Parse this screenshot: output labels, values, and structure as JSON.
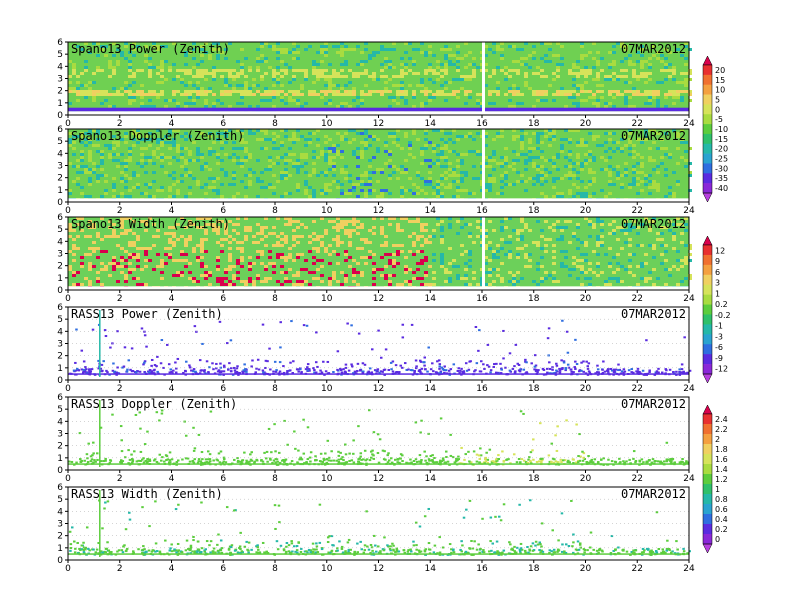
{
  "chart_data": [
    {
      "type": "heatmap",
      "title": "Spano13 Power (Zenith)",
      "date": "07MAR2012",
      "xlim": [
        0,
        24
      ],
      "ylim": [
        0,
        6
      ],
      "x_ticks": [
        "0",
        "2",
        "4",
        "6",
        "8",
        "10",
        "12",
        "14",
        "16",
        "18",
        "20",
        "22",
        "24"
      ],
      "y_ticks": [
        "0",
        "1",
        "2",
        "3",
        "4",
        "5",
        "6"
      ],
      "colorbar": {
        "ticks": [
          "20",
          "15",
          "10",
          "5",
          "0",
          "-5",
          "-10",
          "-15",
          "-20",
          "-25",
          "-30",
          "-35",
          "-40"
        ],
        "colors": [
          "#d9004c",
          "#e83030",
          "#f07030",
          "#f4a040",
          "#f0d060",
          "#d6e35a",
          "#a9dc40",
          "#5ccd3d",
          "#2fc06a",
          "#25b8a8",
          "#2aa3d0",
          "#2f6ee0",
          "#5a2be0",
          "#8a28d8",
          "#b840e0"
        ]
      },
      "description_data": {
        "background_level": "-20",
        "bands": [
          {
            "y": [
              1.6,
              2.2
            ],
            "level": "0"
          },
          {
            "y": [
              3.3,
              3.7
            ],
            "level": "-5"
          },
          {
            "y": [
              0.3,
              0.6
            ],
            "level": "-35"
          }
        ]
      }
    },
    {
      "type": "heatmap",
      "title": "Spano13 Doppler (Zenith)",
      "date": "07MAR2012",
      "xlim": [
        0,
        24
      ],
      "ylim": [
        0,
        6
      ],
      "x_ticks": [
        "0",
        "2",
        "4",
        "6",
        "8",
        "10",
        "12",
        "14",
        "16",
        "18",
        "20",
        "22",
        "24"
      ],
      "y_ticks": [
        "0",
        "1",
        "2",
        "3",
        "4",
        "5",
        "6"
      ]
    },
    {
      "type": "heatmap",
      "title": "Spano13 Width (Zenith)",
      "date": "07MAR2012",
      "xlim": [
        0,
        24
      ],
      "ylim": [
        0,
        6
      ],
      "x_ticks": [
        "0",
        "2",
        "4",
        "6",
        "8",
        "10",
        "12",
        "14",
        "16",
        "18",
        "20",
        "22",
        "24"
      ],
      "y_ticks": [
        "0",
        "1",
        "2",
        "3",
        "4",
        "5",
        "6"
      ],
      "colorbar": {
        "ticks": [
          "12",
          "9",
          "6",
          "3",
          "1",
          "0.2",
          "-0.2",
          "-1",
          "-3",
          "-6",
          "-9",
          "-12"
        ],
        "colors": [
          "#d9004c",
          "#e83030",
          "#f07030",
          "#f4a040",
          "#f0d060",
          "#d6e35a",
          "#a9dc40",
          "#5ccd3d",
          "#2fc06a",
          "#25b8a8",
          "#2aa3d0",
          "#2f6ee0",
          "#5a2be0",
          "#8a28d8",
          "#b840e0"
        ]
      }
    },
    {
      "type": "scatter",
      "title": "RASS13 Power (Zenith)",
      "date": "07MAR2012",
      "xlim": [
        0,
        24
      ],
      "ylim": [
        0,
        6
      ],
      "x_ticks": [
        "0",
        "2",
        "4",
        "6",
        "8",
        "10",
        "12",
        "14",
        "16",
        "18",
        "20",
        "22",
        "24"
      ],
      "y_ticks": [
        "0",
        "1",
        "2",
        "3",
        "4",
        "5",
        "6"
      ]
    },
    {
      "type": "scatter",
      "title": "RASS13 Doppler (Zenith)",
      "date": "07MAR2012",
      "xlim": [
        0,
        24
      ],
      "ylim": [
        0,
        6
      ],
      "x_ticks": [
        "0",
        "2",
        "4",
        "6",
        "8",
        "10",
        "12",
        "14",
        "16",
        "18",
        "20",
        "22",
        "24"
      ],
      "y_ticks": [
        "0",
        "1",
        "2",
        "3",
        "4",
        "5",
        "6"
      ],
      "colorbar": {
        "ticks": [
          "2.4",
          "2.2",
          "2",
          "1.8",
          "1.6",
          "1.4",
          "1.2",
          "1",
          "0.8",
          "0.6",
          "0.4",
          "0.2",
          "0"
        ],
        "colors": [
          "#d9004c",
          "#e83030",
          "#f07030",
          "#f4a040",
          "#f0d060",
          "#d6e35a",
          "#a9dc40",
          "#5ccd3d",
          "#2fc06a",
          "#25b8a8",
          "#2aa3d0",
          "#2f6ee0",
          "#5a2be0",
          "#8a28d8",
          "#b840e0"
        ]
      }
    },
    {
      "type": "scatter",
      "title": "RASS13 Width (Zenith)",
      "date": "07MAR2012",
      "xlim": [
        0,
        24
      ],
      "ylim": [
        0,
        6
      ],
      "x_ticks": [
        "0",
        "2",
        "4",
        "6",
        "8",
        "10",
        "12",
        "14",
        "16",
        "18",
        "20",
        "22",
        "24"
      ],
      "y_ticks": [
        "0",
        "1",
        "2",
        "3",
        "4",
        "5",
        "6"
      ]
    }
  ]
}
